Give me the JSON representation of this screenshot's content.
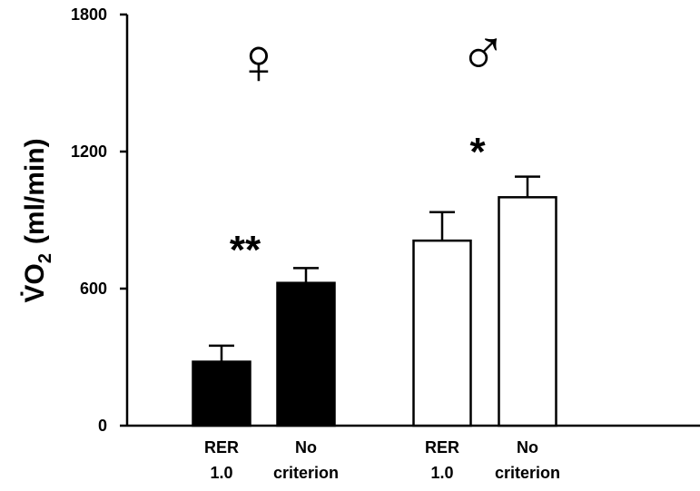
{
  "chart_data": {
    "type": "bar",
    "y_label": [
      "V̇O",
      "2",
      "(ml/min)"
    ],
    "categories": [
      [
        "RER",
        "1.0"
      ],
      [
        "No",
        "criterion"
      ],
      [
        "RER",
        "1.0"
      ],
      [
        "No",
        "criterion"
      ]
    ],
    "values": [
      280,
      625,
      810,
      1000
    ],
    "errors": [
      70,
      65,
      125,
      90
    ],
    "colors": [
      "#000000",
      "#000000",
      "#ffffff",
      "#ffffff"
    ],
    "annotations": [
      "♀",
      "**",
      "♂",
      "*"
    ],
    "ylim": [
      0,
      1800
    ],
    "yticks": [
      0,
      600,
      1200,
      1800
    ]
  }
}
